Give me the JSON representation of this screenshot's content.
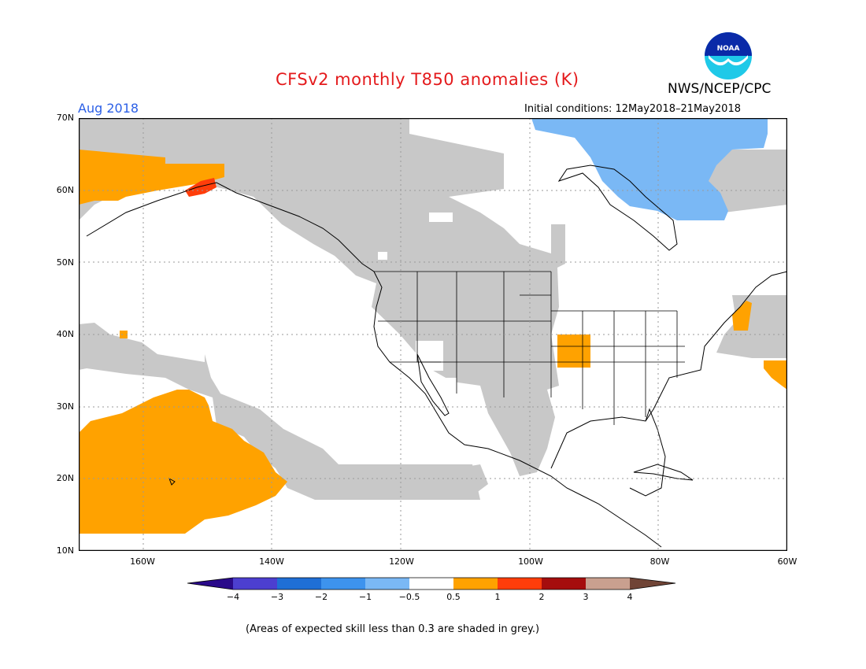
{
  "header": {
    "title": "CFSv2 monthly T850 anomalies (K)",
    "org": "NWS/NCEP/CPC",
    "logo_text": "NOAA",
    "month": "Aug 2018",
    "initial_conditions": "Initial conditions: 12May2018–21May2018"
  },
  "map": {
    "lat_labels": [
      "70N",
      "60N",
      "50N",
      "40N",
      "30N",
      "20N",
      "10N"
    ],
    "lon_labels": [
      "160W",
      "140W",
      "120W",
      "100W",
      "80W",
      "60W"
    ],
    "lon_range": [
      -170,
      -60
    ],
    "lat_range": [
      10,
      70
    ]
  },
  "colorbar": {
    "labels": [
      "−4",
      "−3",
      "−2",
      "−1",
      "−0.5",
      "0.5",
      "1",
      "2",
      "3",
      "4"
    ],
    "colors": [
      "#2a0a8a",
      "#4c3fd0",
      "#1f6fd6",
      "#3d93ee",
      "#7ab8f5",
      "#ffffff",
      "#ffa200",
      "#ff3d0a",
      "#a50d0d",
      "#c9a08f",
      "#704436"
    ]
  },
  "legend_colors": {
    "grey_low_skill": "#c8c8c8",
    "warm_0_5_1": "#ffa200",
    "warm_1_2": "#ff3d0a",
    "cool_m1_m0_5": "#7ab8f5"
  },
  "footnote": "(Areas of expected skill less than 0.3 are shaded in grey.)"
}
